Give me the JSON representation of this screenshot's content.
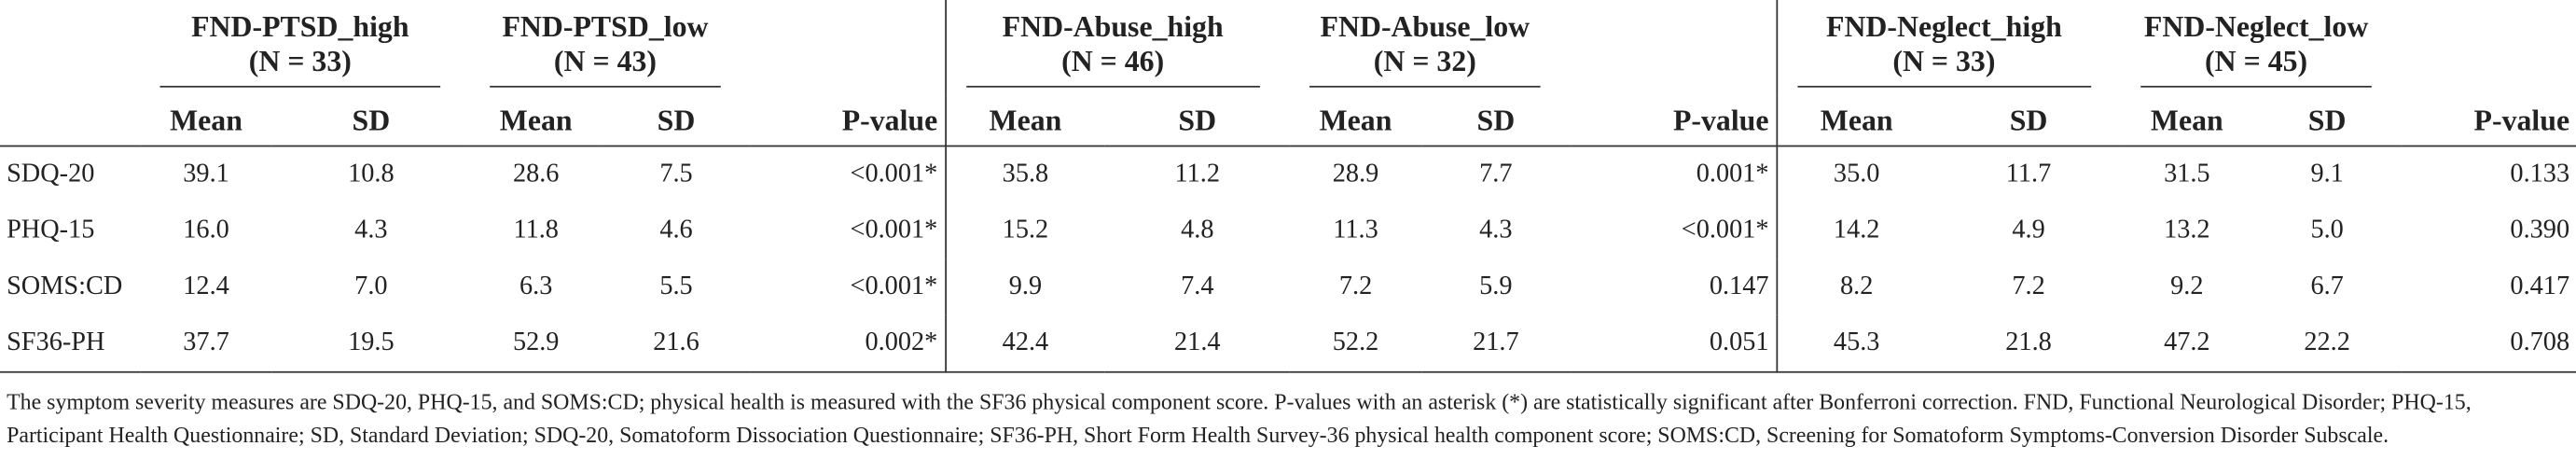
{
  "table": {
    "groups": [
      {
        "name": "FND-PTSD_high",
        "n": "(N = 33)"
      },
      {
        "name": "FND-PTSD_low",
        "n": "(N = 43)"
      },
      {
        "name": "FND-Abuse_high",
        "n": "(N = 46)"
      },
      {
        "name": "FND-Abuse_low",
        "n": "(N = 32)"
      },
      {
        "name": "FND-Neglect_high",
        "n": "(N = 33)"
      },
      {
        "name": "FND-Neglect_low",
        "n": "(N = 45)"
      }
    ],
    "subheaders": [
      "Mean",
      "SD"
    ],
    "p_header": "P-value",
    "rows": [
      {
        "label": "SDQ-20",
        "cells": [
          "39.1",
          "10.8",
          "28.6",
          "7.5",
          "<0.001*",
          "35.8",
          "11.2",
          "28.9",
          "7.7",
          "0.001*",
          "35.0",
          "11.7",
          "31.5",
          "9.1",
          "0.133"
        ]
      },
      {
        "label": "PHQ-15",
        "cells": [
          "16.0",
          "4.3",
          "11.8",
          "4.6",
          "<0.001*",
          "15.2",
          "4.8",
          "11.3",
          "4.3",
          "<0.001*",
          "14.2",
          "4.9",
          "13.2",
          "5.0",
          "0.390"
        ]
      },
      {
        "label": "SOMS:CD",
        "cells": [
          "12.4",
          "7.0",
          "6.3",
          "5.5",
          "<0.001*",
          "9.9",
          "7.4",
          "7.2",
          "5.9",
          "0.147",
          "8.2",
          "7.2",
          "9.2",
          "6.7",
          "0.417"
        ]
      },
      {
        "label": "SF36-PH",
        "cells": [
          "37.7",
          "19.5",
          "52.9",
          "21.6",
          "0.002*",
          "42.4",
          "21.4",
          "52.2",
          "21.7",
          "0.051",
          "45.3",
          "21.8",
          "47.2",
          "22.2",
          "0.708"
        ]
      }
    ]
  },
  "footnote": "The symptom severity measures are SDQ-20, PHQ-15, and SOMS:CD; physical health is measured with the SF36 physical component score. P-values with an asterisk (*) are statistically significant after Bonferroni correction. FND, Functional Neurological Disorder; PHQ-15, Participant Health Questionnaire; SD, Standard Deviation; SDQ-20, Somatoform Dissociation Questionnaire; SF36-PH, Short Form Health Survey-36 physical health component score; SOMS:CD, Screening for Somatoform Symptoms-Conversion Disorder Subscale."
}
